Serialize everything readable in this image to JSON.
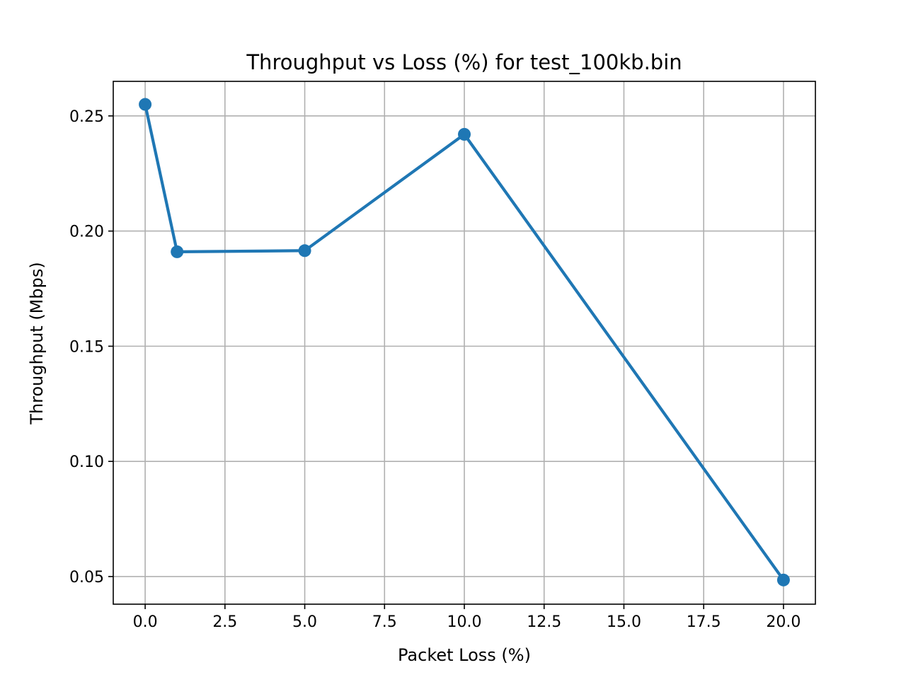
{
  "chart_data": {
    "type": "line",
    "title": "Throughput vs Loss (%) for test_100kb.bin",
    "xlabel": "Packet Loss (%)",
    "ylabel": "Throughput (Mbps)",
    "xlim": [
      -1.0,
      21.0
    ],
    "ylim": [
      0.038,
      0.265
    ],
    "x_ticks": [
      0.0,
      2.5,
      5.0,
      7.5,
      10.0,
      12.5,
      15.0,
      17.5,
      20.0
    ],
    "x_tick_labels": [
      "0.0",
      "2.5",
      "5.0",
      "7.5",
      "10.0",
      "12.5",
      "15.0",
      "17.5",
      "20.0"
    ],
    "y_ticks": [
      0.05,
      0.1,
      0.15,
      0.2,
      0.25
    ],
    "y_tick_labels": [
      "0.05",
      "0.10",
      "0.15",
      "0.20",
      "0.25"
    ],
    "grid": true,
    "series": [
      {
        "x": [
          0,
          1,
          5,
          10,
          20
        ],
        "y": [
          0.255,
          0.191,
          0.1915,
          0.242,
          0.0485
        ],
        "color": "#1f77b4",
        "marker": "circle"
      }
    ]
  }
}
